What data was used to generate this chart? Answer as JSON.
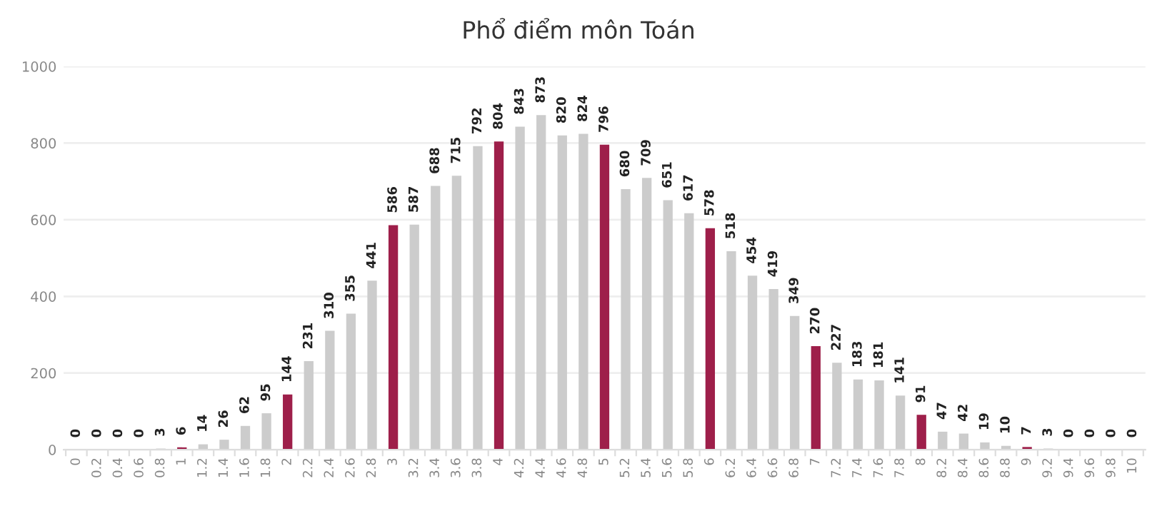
{
  "chart_data": {
    "type": "bar",
    "title": "Phổ điểm môn Toán",
    "categories": [
      "0",
      "0.2",
      "0.4",
      "0.6",
      "0.8",
      "1",
      "1.2",
      "1.4",
      "1.6",
      "1.8",
      "2",
      "2.2",
      "2.4",
      "2.6",
      "2.8",
      "3",
      "3.2",
      "3.4",
      "3.6",
      "3.8",
      "4",
      "4.2",
      "4.4",
      "4.6",
      "4.8",
      "5",
      "5.2",
      "5.4",
      "5.6",
      "5.8",
      "6",
      "6.2",
      "6.4",
      "6.6",
      "6.8",
      "7",
      "7.2",
      "7.4",
      "7.6",
      "7.8",
      "8",
      "8.2",
      "8.4",
      "8.6",
      "8.8",
      "9",
      "9.2",
      "9.4",
      "9.6",
      "9.8",
      "10"
    ],
    "values": [
      0,
      0,
      0,
      0,
      3,
      6,
      14,
      26,
      62,
      95,
      144,
      231,
      310,
      355,
      441,
      586,
      587,
      688,
      715,
      792,
      804,
      843,
      873,
      820,
      824,
      796,
      680,
      709,
      651,
      617,
      578,
      518,
      454,
      419,
      349,
      270,
      227,
      183,
      181,
      141,
      91,
      47,
      42,
      19,
      10,
      7,
      3,
      0,
      0,
      0,
      0
    ],
    "colors": [
      "#9e1f4a",
      "#cccccc",
      "#cccccc",
      "#cccccc",
      "#cccccc",
      "#9e1f4a",
      "#cccccc",
      "#cccccc",
      "#cccccc",
      "#cccccc",
      "#9e1f4a",
      "#cccccc",
      "#cccccc",
      "#cccccc",
      "#cccccc",
      "#9e1f4a",
      "#cccccc",
      "#cccccc",
      "#cccccc",
      "#cccccc",
      "#9e1f4a",
      "#cccccc",
      "#cccccc",
      "#cccccc",
      "#cccccc",
      "#9e1f4a",
      "#cccccc",
      "#cccccc",
      "#cccccc",
      "#cccccc",
      "#9e1f4a",
      "#cccccc",
      "#cccccc",
      "#cccccc",
      "#cccccc",
      "#9e1f4a",
      "#cccccc",
      "#cccccc",
      "#cccccc",
      "#cccccc",
      "#9e1f4a",
      "#cccccc",
      "#cccccc",
      "#cccccc",
      "#cccccc",
      "#9e1f4a",
      "#cccccc",
      "#cccccc",
      "#cccccc",
      "#cccccc",
      "#9e1f4a"
    ],
    "ylim": [
      0,
      1000
    ],
    "yticks": [
      0,
      200,
      400,
      600,
      800,
      1000
    ],
    "grid": "y",
    "data_labels": true,
    "legend": false
  }
}
